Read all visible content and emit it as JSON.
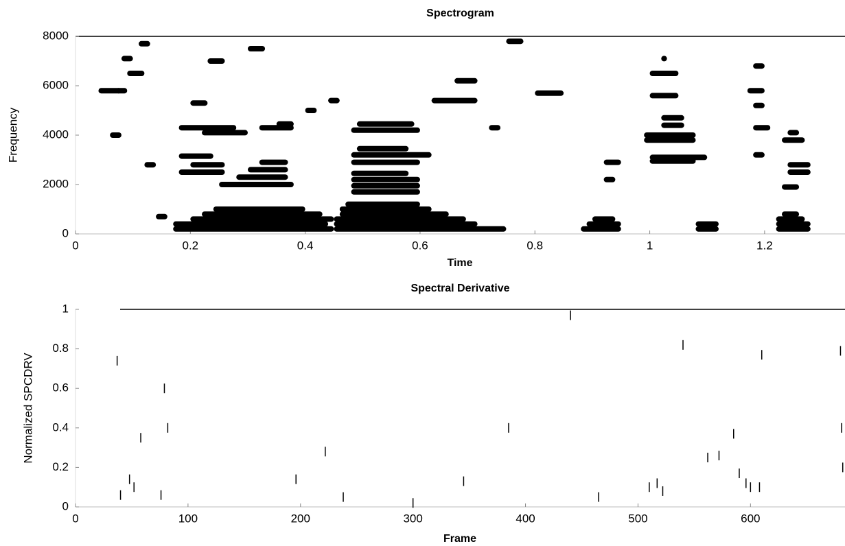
{
  "chart_data": [
    {
      "type": "spectrogram",
      "title": "Spectrogram",
      "xlabel": "Time",
      "ylabel": "Frequency",
      "color": "#000000",
      "xlim": [
        0,
        1.34
      ],
      "ylim": [
        0,
        8000
      ],
      "xticks": [
        0,
        0.2,
        0.4,
        0.6,
        0.8,
        1,
        1.2
      ],
      "yticks": [
        0,
        2000,
        4000,
        6000,
        8000
      ],
      "x": [
        0.17,
        0.17,
        0.2,
        0.22,
        0.24,
        0.45,
        0.45,
        0.45,
        0.46,
        0.46,
        0.47,
        0.48,
        0.48,
        0.48,
        0.48,
        0.48,
        0.48,
        0.49,
        0.48,
        0.49,
        0.25,
        0.28,
        0.3,
        0.32,
        0.18,
        0.2,
        0.18,
        0.18,
        0.22,
        0.32,
        0.35,
        0.88,
        0.89,
        0.9,
        0.92,
        0.92,
        0.99,
        0.99,
        1.0,
        1.0,
        1.02,
        1.02,
        1.0,
        1.0,
        1.02,
        1.08,
        1.08,
        1.18,
        1.17,
        1.18,
        1.18,
        1.18,
        1.22,
        1.22,
        1.22,
        1.23,
        1.23,
        1.24,
        1.24,
        1.23,
        1.24,
        0.62,
        0.04,
        0.08,
        0.09,
        0.11,
        0.07,
        0.2,
        0.4,
        0.44,
        0.72,
        0.8,
        0.12,
        0.14,
        0.06,
        0.23,
        0.3,
        0.75,
        0.66
      ],
      "x_end": [
        0.45,
        0.44,
        0.45,
        0.43,
        0.4,
        0.75,
        0.7,
        0.68,
        0.65,
        0.62,
        0.6,
        0.6,
        0.6,
        0.6,
        0.58,
        0.6,
        0.62,
        0.58,
        0.6,
        0.59,
        0.38,
        0.37,
        0.37,
        0.37,
        0.24,
        0.26,
        0.26,
        0.28,
        0.3,
        0.38,
        0.38,
        0.95,
        0.95,
        0.94,
        0.95,
        0.94,
        1.08,
        1.08,
        1.1,
        1.08,
        1.06,
        1.06,
        1.05,
        1.05,
        1.03,
        1.12,
        1.12,
        1.2,
        1.2,
        1.2,
        1.21,
        1.2,
        1.28,
        1.28,
        1.27,
        1.26,
        1.26,
        1.28,
        1.28,
        1.27,
        1.26,
        0.7,
        0.08,
        0.1,
        0.12,
        0.13,
        0.09,
        0.23,
        0.42,
        0.46,
        0.74,
        0.85,
        0.14,
        0.16,
        0.08,
        0.26,
        0.33,
        0.78,
        0.7
      ],
      "values": [
        200,
        400,
        600,
        800,
        1000,
        200,
        400,
        600,
        800,
        1000,
        1200,
        1700,
        1950,
        2200,
        2450,
        2900,
        3200,
        3450,
        4200,
        4450,
        2000,
        2300,
        2600,
        2900,
        3150,
        2800,
        2500,
        4300,
        4100,
        4300,
        4450,
        200,
        400,
        600,
        2900,
        2200,
        4000,
        3800,
        3100,
        2950,
        4400,
        4700,
        5600,
        6500,
        7100,
        200,
        400,
        6800,
        5800,
        5200,
        4300,
        3200,
        200,
        400,
        600,
        800,
        1900,
        2800,
        2500,
        3800,
        4100,
        5400,
        5800,
        7100,
        6500,
        7700,
        5800,
        5300,
        5000,
        5400,
        4300,
        5700,
        2800,
        700,
        4000,
        7000,
        7500,
        7800,
        6200
      ]
    },
    {
      "type": "ticks",
      "title": "Spectral Derivative",
      "xlabel": "Frame",
      "ylabel": "Normalized SPCDRV",
      "color": "#000000",
      "xlim": [
        0,
        684
      ],
      "ylim": [
        0,
        1
      ],
      "xticks": [
        0,
        100,
        200,
        300,
        400,
        500,
        600
      ],
      "yticks": [
        0,
        0.2,
        0.4,
        0.6,
        0.8,
        1
      ],
      "x": [
        37,
        40,
        48,
        52,
        58,
        76,
        79,
        82,
        196,
        222,
        238,
        300,
        345,
        385,
        440,
        465,
        510,
        517,
        522,
        540,
        562,
        572,
        585,
        590,
        596,
        600,
        608,
        610,
        680,
        682,
        681
      ],
      "values": [
        0.74,
        0.06,
        0.14,
        0.1,
        0.35,
        0.06,
        0.6,
        0.4,
        0.14,
        0.28,
        0.05,
        0.02,
        0.13,
        0.4,
        0.97,
        0.05,
        0.1,
        0.12,
        0.08,
        0.82,
        0.25,
        0.26,
        0.37,
        0.17,
        0.12,
        0.1,
        0.1,
        0.77,
        0.79,
        0.2,
        0.4
      ]
    }
  ]
}
